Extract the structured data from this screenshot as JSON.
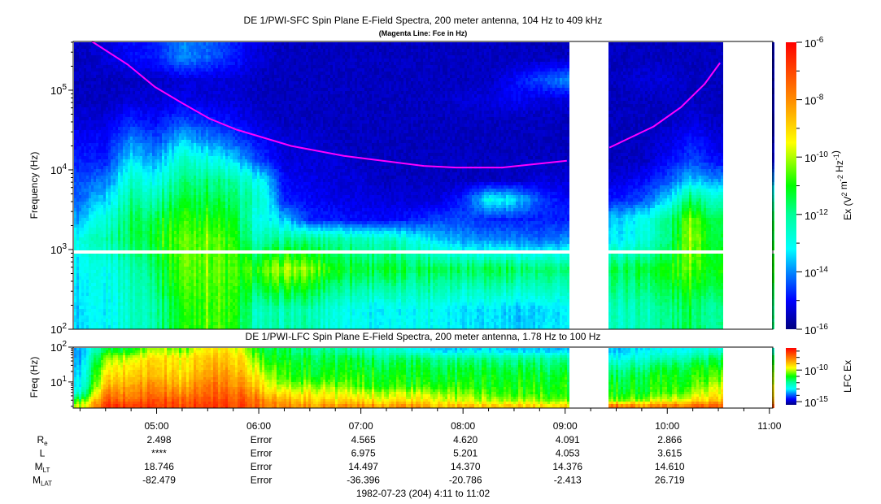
{
  "titles": {
    "main": "DE 1/PWI-SFC  Spin Plane E-Field Spectra, 200 meter antenna, 104 Hz to 409 kHz",
    "subtitle": "(Magenta Line: Fce in Hz)",
    "lfc": "DE 1/PWI-LFC  Spin Plane E-Field Spectra, 200 meter antenna, 1.78 Hz to 100 Hz"
  },
  "colors": {
    "fce_line": "#ff00ff",
    "gap": "#ffffff",
    "colormap": [
      {
        "pos": 0.0,
        "color": "#00007f"
      },
      {
        "pos": 0.1,
        "color": "#0000ff"
      },
      {
        "pos": 0.2,
        "color": "#0088ff"
      },
      {
        "pos": 0.28,
        "color": "#00ffff"
      },
      {
        "pos": 0.4,
        "color": "#00ff99"
      },
      {
        "pos": 0.5,
        "color": "#00ff00"
      },
      {
        "pos": 0.6,
        "color": "#b0ff00"
      },
      {
        "pos": 0.65,
        "color": "#ffff00"
      },
      {
        "pos": 0.8,
        "color": "#ff8c00"
      },
      {
        "pos": 1.0,
        "color": "#ff0000"
      }
    ]
  },
  "chart_data": [
    {
      "type": "heatmap",
      "name": "sfc",
      "title": "DE 1/PWI-SFC  Spin Plane E-Field Spectra, 200 meter antenna, 104 Hz to 409 kHz",
      "ylabel": "Frequency (Hz)",
      "yscale": "log",
      "ylim_hz": [
        100,
        409000
      ],
      "ytick_exponents": [
        2,
        3,
        4,
        5
      ],
      "frequency_gap_hz": [
        870,
        1000
      ],
      "colorbar": {
        "label": [
          {
            "t": "Ex (V"
          },
          {
            "sup": "2"
          },
          {
            "t": " m"
          },
          {
            "sup": "-2"
          },
          {
            "t": " Hz"
          },
          {
            "sup": "-1"
          },
          {
            "t": ")"
          }
        ],
        "log10_range": [
          -16,
          -6
        ],
        "tick_exponents": [
          -16,
          -14,
          -12,
          -10,
          -8,
          -6
        ]
      },
      "frequency_hz": [
        178,
        562,
        1330,
        2370,
        4220,
        7500,
        13300,
        23700,
        42200,
        75000,
        133000,
        250000
      ],
      "times": [
        "04:15",
        "04:30",
        "04:45",
        "05:00",
        "05:15",
        "05:30",
        "05:45",
        "06:00",
        "06:15",
        "06:30",
        "06:45",
        "07:00",
        "07:15",
        "07:30",
        "07:45",
        "08:00",
        "08:15",
        "08:30",
        "08:45",
        "09:00",
        "09:15",
        "09:30",
        "09:45",
        "10:00",
        "10:15",
        "10:30"
      ],
      "log10_values": [
        [
          -13.5,
          -13.3,
          -13,
          -13.8,
          -14.3,
          -14.5,
          -14.8,
          -15,
          -15.3,
          -15.5,
          -15.5,
          -15.5
        ],
        [
          -13.2,
          -13,
          -12.3,
          -12.8,
          -13.5,
          -14.2,
          -14.8,
          -15,
          -15.3,
          -15.5,
          -15.5,
          -15.3
        ],
        [
          -12.5,
          -12.3,
          -11.5,
          -11.5,
          -12,
          -12.5,
          -13.3,
          -14,
          -14.8,
          -15.3,
          -15.5,
          -15
        ],
        [
          -12,
          -11.5,
          -11,
          -11.3,
          -12.2,
          -13,
          -13.8,
          -14.5,
          -15,
          -15.3,
          -15.5,
          -14.8
        ],
        [
          -11,
          -10.5,
          -10.5,
          -10.8,
          -11.3,
          -11.8,
          -12.5,
          -13.5,
          -14.5,
          -15.2,
          -15.3,
          -14
        ],
        [
          -10.5,
          -10.3,
          -10.3,
          -10.8,
          -11.3,
          -11.8,
          -12.8,
          -14,
          -14.8,
          -15.3,
          -15.3,
          -14.3
        ],
        [
          -11,
          -10.8,
          -11,
          -11.3,
          -11.8,
          -12.3,
          -13.5,
          -14.5,
          -15,
          -15.3,
          -15.3,
          -14.8
        ],
        [
          -12.5,
          -10.8,
          -12.5,
          -13,
          -12.5,
          -13,
          -14.5,
          -15,
          -15.3,
          -15.5,
          -15.5,
          -15.3
        ],
        [
          -12.3,
          -10,
          -12,
          -13.5,
          -14.8,
          -15,
          -15.3,
          -15.3,
          -15.5,
          -15.5,
          -15.5,
          -15.5
        ],
        [
          -12.3,
          -10.3,
          -12,
          -14.8,
          -15,
          -15.2,
          -15.3,
          -15.3,
          -15.5,
          -15.5,
          -15.5,
          -15.5
        ],
        [
          -12.8,
          -11,
          -12,
          -14.8,
          -15.2,
          -15.3,
          -15.3,
          -15.5,
          -15.5,
          -15.5,
          -15.5,
          -15.5
        ],
        [
          -13,
          -11.3,
          -12.3,
          -15,
          -15.2,
          -15.3,
          -15.5,
          -15.5,
          -15.5,
          -15.5,
          -15.5,
          -15.5
        ],
        [
          -13.3,
          -11.3,
          -12.5,
          -15,
          -15.3,
          -15.5,
          -15.5,
          -15.5,
          -15.5,
          -15.5,
          -15.5,
          -15.5
        ],
        [
          -13,
          -11.5,
          -12.8,
          -14.8,
          -15.3,
          -15.5,
          -15.5,
          -15.5,
          -15.5,
          -15.5,
          -15.5,
          -15.5
        ],
        [
          -13,
          -11.3,
          -13.5,
          -14.5,
          -15.3,
          -15.5,
          -15.5,
          -15.5,
          -15.5,
          -15.5,
          -15.5,
          -15.5
        ],
        [
          -13.3,
          -11.5,
          -13.8,
          -14.5,
          -14.8,
          -15.5,
          -15.5,
          -15.5,
          -15.5,
          -15.3,
          -15.5,
          -15.5
        ],
        [
          -13.3,
          -11.3,
          -14,
          -14.8,
          -13,
          -15.5,
          -15.5,
          -15.5,
          -15.5,
          -15.3,
          -15.5,
          -15.5
        ],
        [
          -13.5,
          -11.5,
          -14,
          -14.8,
          -13.3,
          -15.5,
          -15.5,
          -15.5,
          -15.5,
          -15,
          -15,
          -15.5
        ],
        [
          -13.5,
          -11.8,
          -14.3,
          -14.8,
          -14.5,
          -15.3,
          -15.5,
          -15.5,
          -15.5,
          -15.3,
          -14.5,
          -15.5
        ],
        [
          -13.3,
          -11.8,
          -14,
          -14.8,
          -15,
          -15.3,
          -15.5,
          -15.5,
          -15.5,
          -15.3,
          -14,
          -15.5
        ],
        null,
        [
          -12.5,
          -11.5,
          -13.3,
          -13.5,
          -14.8,
          -15.3,
          -15.5,
          -15.5,
          -15.5,
          -15.5,
          -15.5,
          -15.5
        ],
        [
          -12.3,
          -11.3,
          -12.8,
          -13,
          -14.5,
          -15,
          -15.5,
          -15.5,
          -15.5,
          -15.5,
          -15.3,
          -15.5
        ],
        [
          -12,
          -11,
          -12,
          -12,
          -13.5,
          -14.5,
          -15,
          -15.3,
          -15.5,
          -15.5,
          -15.3,
          -15.5
        ],
        [
          -11.5,
          -10.5,
          -10,
          -10.3,
          -11.5,
          -13.5,
          -14.5,
          -14.8,
          -15.3,
          -15.5,
          -15.5,
          -15.5
        ],
        [
          -12,
          -11,
          -11.5,
          -11.5,
          -12.5,
          -14,
          -15,
          -15.3,
          -15.5,
          -15.5,
          -15.5,
          -15.5
        ]
      ],
      "fce_hz": [
        [
          [
            "04:22",
            409000
          ],
          [
            "04:43",
            210000
          ],
          [
            "04:59",
            110000
          ],
          [
            "05:15",
            69000
          ],
          [
            "05:31",
            44000
          ],
          [
            "05:47",
            32000
          ],
          [
            "06:19",
            20000
          ],
          [
            "06:50",
            15000
          ],
          [
            "07:37",
            11200
          ],
          [
            "07:56",
            10700
          ],
          [
            "08:23",
            10700
          ],
          [
            "09:01",
            13000
          ]
        ],
        [
          [
            "09:26",
            19000
          ],
          [
            "09:52",
            35000
          ],
          [
            "10:08",
            61000
          ],
          [
            "10:22",
            120000
          ],
          [
            "10:31",
            220000
          ]
        ]
      ]
    },
    {
      "type": "heatmap",
      "name": "lfc",
      "title": "DE 1/PWI-LFC  Spin Plane E-Field Spectra, 200 meter antenna, 1.78 Hz to 100 Hz",
      "ylabel": "Freq (Hz)",
      "yscale": "log",
      "ylim_hz": [
        1.78,
        100
      ],
      "ytick_exponents": [
        1,
        2
      ],
      "colorbar": {
        "label": [
          {
            "t": "LFC Ex"
          }
        ],
        "log10_range": [
          -15.5,
          -6.5
        ],
        "tick_exponents": [
          -15,
          -10
        ]
      },
      "frequency_hz": [
        2.1,
        3,
        4.7,
        8,
        15,
        27,
        48,
        80
      ],
      "times": [
        "04:15",
        "04:30",
        "04:45",
        "05:00",
        "05:15",
        "05:30",
        "05:45",
        "06:00",
        "06:15",
        "06:30",
        "06:45",
        "07:00",
        "07:15",
        "07:30",
        "07:45",
        "08:00",
        "08:15",
        "08:30",
        "08:45",
        "09:00",
        "09:15",
        "09:30",
        "09:45",
        "10:00",
        "10:15",
        "10:30"
      ],
      "log10_values": [
        [
          -10,
          -11,
          -12.5,
          -13,
          -13.2,
          -13.3,
          -13.5,
          -13.5
        ],
        [
          -7.3,
          -7.8,
          -8.3,
          -9,
          -9.5,
          -10,
          -10.5,
          -11.5
        ],
        [
          -7.2,
          -7.8,
          -8.2,
          -8.5,
          -9,
          -9.3,
          -9.8,
          -11
        ],
        [
          -7.3,
          -7.5,
          -8,
          -8.3,
          -8.8,
          -9,
          -9.3,
          -10
        ],
        [
          -7.5,
          -7.8,
          -8.3,
          -8.8,
          -9.2,
          -9.5,
          -9.5,
          -10.5
        ],
        [
          -7.3,
          -7.5,
          -7.8,
          -8,
          -8.5,
          -8.8,
          -9,
          -9.5
        ],
        [
          -7.3,
          -7.5,
          -7.8,
          -8.2,
          -8.5,
          -8.8,
          -9,
          -9.5
        ],
        [
          -7.8,
          -8,
          -8.5,
          -9,
          -9.5,
          -10,
          -10.5,
          -11
        ],
        [
          -8.3,
          -8.8,
          -9.5,
          -10.3,
          -10.8,
          -11,
          -11.3,
          -11.5
        ],
        [
          -8.5,
          -9,
          -9.5,
          -10.3,
          -11,
          -11.2,
          -11.3,
          -11.8
        ],
        [
          -8.5,
          -9.3,
          -9.8,
          -10.5,
          -11,
          -11.2,
          -11.5,
          -12
        ],
        [
          -8.5,
          -9.3,
          -10,
          -10.8,
          -11,
          -11.3,
          -11.5,
          -12.3
        ],
        [
          -8.5,
          -9.5,
          -10,
          -10.8,
          -11,
          -11.3,
          -11.7,
          -12.5
        ],
        [
          -8.5,
          -9.5,
          -10,
          -11,
          -11.2,
          -11.3,
          -11.7,
          -12.8
        ],
        [
          -9,
          -9.8,
          -10.3,
          -11,
          -11.3,
          -11.5,
          -12,
          -13.3
        ],
        [
          -9,
          -10,
          -10.5,
          -11,
          -11.3,
          -11.5,
          -12,
          -13.3
        ],
        [
          -9,
          -10,
          -10.5,
          -11,
          -11,
          -11.3,
          -11.8,
          -13
        ],
        [
          -9,
          -10.3,
          -10.8,
          -11,
          -11.2,
          -11.5,
          -12,
          -13.3
        ],
        [
          -9.3,
          -10.3,
          -10.8,
          -11,
          -11.2,
          -11.5,
          -12,
          -13.3
        ],
        [
          -9.3,
          -10.5,
          -11,
          -11,
          -11.2,
          -11.5,
          -12,
          -13.3
        ],
        null,
        [
          -8,
          -10.5,
          -11,
          -11.2,
          -11.5,
          -12,
          -12.8,
          -13.3
        ],
        [
          -8.5,
          -10.3,
          -11,
          -11.2,
          -11.3,
          -11.8,
          -12.5,
          -13
        ],
        [
          -8.3,
          -10,
          -10.8,
          -11,
          -11.2,
          -11.5,
          -12.3,
          -13
        ],
        [
          -8,
          -9.5,
          -10.3,
          -10.8,
          -11,
          -11.3,
          -12,
          -12.8
        ],
        [
          -7.8,
          -9,
          -9.5,
          -10,
          -10.5,
          -11,
          -11.5,
          -12.5
        ]
      ]
    }
  ],
  "time_axis": {
    "range": [
      "04:11",
      "11:02"
    ],
    "tick_labels": [
      "05:00",
      "06:00",
      "07:00",
      "08:00",
      "09:00",
      "10:00",
      "11:00"
    ],
    "data_gaps": [
      [
        "09:02",
        "09:25"
      ],
      [
        "10:33",
        "11:02"
      ]
    ]
  },
  "ephemeris": {
    "rows": [
      {
        "label": "R",
        "sub": "e",
        "values": [
          "2.498",
          "Error",
          "4.565",
          "4.620",
          "4.091",
          "2.866"
        ]
      },
      {
        "label": "L",
        "sub": "",
        "values": [
          "****",
          "Error",
          "6.975",
          "5.201",
          "4.053",
          "3.615"
        ]
      },
      {
        "label": "M",
        "sub": "LT",
        "values": [
          "18.746",
          "Error",
          "14.497",
          "14.370",
          "14.376",
          "14.610"
        ]
      },
      {
        "label": "M",
        "sub": "LAT",
        "values": [
          "-82.479",
          "Error",
          "-36.396",
          "-20.786",
          "-2.413",
          "26.719"
        ]
      }
    ],
    "date_range": "1982-07-23 (204) 4:11 to 11:02"
  }
}
